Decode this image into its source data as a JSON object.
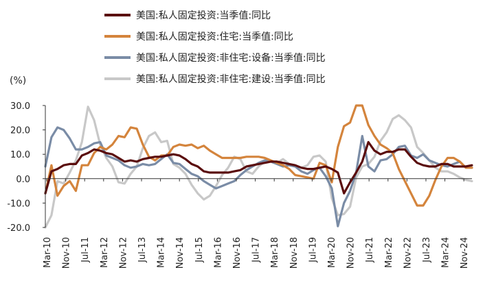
{
  "chart_data": {
    "type": "line",
    "unit_label": "(%)",
    "x_range": [
      "Mar-10",
      "Dec-24"
    ],
    "ylim": [
      -20,
      30
    ],
    "y_ticks": [
      30,
      20,
      10,
      0,
      -10,
      -20
    ],
    "y_tick_labels": [
      "30.0",
      "20.0",
      "10.0",
      "0.0",
      "-10.0",
      "-20.0"
    ],
    "x_tick_labels": [
      "Mar-10",
      "Nov-10",
      "Jul-11",
      "Mar-12",
      "Nov-12",
      "Jul-13",
      "Mar-14",
      "Nov-14",
      "Jul-15",
      "Mar-16",
      "Nov-16",
      "Jul-17",
      "Mar-18",
      "Nov-18",
      "Jul-19",
      "Mar-20",
      "Nov-20",
      "Jul-21",
      "Mar-22",
      "Nov-22",
      "Jul-23",
      "Mar-24",
      "Nov-24"
    ],
    "grid": false,
    "legend_position": "top",
    "series": [
      {
        "name": "美国:私人固定投资:当季值:同比",
        "color": "#5a0c0c",
        "values": [
          -6,
          3,
          4,
          5.5,
          6,
          6,
          9.5,
          10.5,
          12,
          11.5,
          10.5,
          10,
          8.5,
          7,
          7.5,
          7,
          8,
          8.5,
          9,
          9,
          9.5,
          10,
          9.5,
          8,
          6,
          5,
          3,
          2.5,
          2.5,
          2.5,
          2.5,
          3,
          3.5,
          5,
          5.5,
          6,
          6.5,
          7,
          7,
          6.5,
          6,
          5.5,
          4.5,
          4,
          4,
          4.5,
          5,
          4,
          2.5,
          -6,
          -1.5,
          2.5,
          7,
          15,
          11.5,
          10,
          11,
          11,
          12,
          12,
          9,
          6.5,
          5.5,
          5,
          5,
          6,
          6,
          5,
          5,
          5,
          5.5
        ]
      },
      {
        "name": "美国:私人固定投资:住宅:当季值:同比",
        "color": "#d4843c",
        "values": [
          -6,
          5.5,
          -7,
          -3,
          -1,
          -5,
          5.5,
          5.5,
          10.5,
          13,
          12,
          14,
          17.5,
          17,
          21,
          20.5,
          14,
          9,
          7.5,
          9.5,
          9.5,
          13,
          14,
          13.5,
          14,
          12.5,
          13.5,
          11.5,
          10,
          8.5,
          8.5,
          8.5,
          8.5,
          9,
          9,
          9,
          8.5,
          7.5,
          6.5,
          5.5,
          4,
          1.5,
          1,
          0.5,
          0,
          6.5,
          5.5,
          -1.5,
          13,
          21.5,
          23,
          33,
          30,
          22,
          17.5,
          14,
          12.5,
          10.5,
          4,
          -1,
          -6,
          -11,
          -11,
          -7,
          -0.5,
          5,
          8.5,
          8.5,
          7,
          4.5,
          4.5
        ]
      },
      {
        "name": "美国:私人固定投资:非住宅:设备:当季值:同比",
        "color": "#7a8ca6",
        "values": [
          5,
          17,
          21,
          20,
          16.5,
          12,
          12,
          13,
          14.5,
          15,
          9.5,
          8.5,
          7.5,
          5.5,
          4.5,
          5,
          6,
          5.5,
          6,
          8,
          10,
          6.5,
          6,
          4,
          2,
          1,
          -1,
          -2.5,
          -4,
          -3,
          -2,
          -1,
          1.5,
          3.5,
          5,
          6.5,
          7.5,
          7,
          6,
          5,
          5.5,
          5,
          3,
          2,
          3.5,
          4.5,
          1,
          -4,
          -19.5,
          -10,
          -5,
          2.5,
          17.5,
          5,
          3,
          7.5,
          8,
          10,
          13,
          13.5,
          9.5,
          8.5,
          10,
          7.5,
          6.5,
          5.5,
          5,
          6,
          7,
          4.5,
          4.5
        ]
      },
      {
        "name": "美国:私人固定投资:非住宅:建设:当季值:同比",
        "color": "#c8c8c8",
        "values": [
          -20.5,
          -15,
          -1,
          -2,
          2.5,
          7.5,
          15,
          29.5,
          24,
          14,
          8.5,
          5,
          -1.5,
          -2,
          2,
          5,
          12.5,
          17.5,
          19,
          15,
          15.5,
          6,
          4.5,
          2,
          -2.5,
          -6,
          -8.5,
          -7,
          -3,
          1.5,
          4.5,
          9,
          8,
          3,
          2,
          5,
          7,
          7,
          6.5,
          8,
          6,
          5.5,
          4.5,
          5.5,
          9,
          9.5,
          7,
          -8,
          -15,
          -14.5,
          -11.5,
          0.5,
          5,
          6,
          9,
          15.5,
          19,
          24.5,
          26,
          24,
          21,
          13,
          10.5,
          7.5,
          4.5,
          3,
          3,
          2,
          0.5,
          -0.5,
          -1
        ]
      }
    ]
  }
}
